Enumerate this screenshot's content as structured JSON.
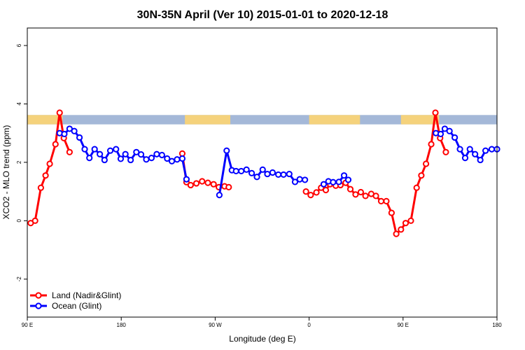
{
  "chart_data": {
    "type": "line",
    "title": "30N-35N April (Ver 10)   2015-01-01 to 2020-12-18",
    "xlabel": "Longitude (deg E)",
    "ylabel": "XCO2 - MLO trend (ppm)",
    "xlim": [
      90,
      270
    ],
    "ylim": [
      -3.3,
      6.6
    ],
    "xticks": [
      {
        "value": 90,
        "label": "90 E"
      },
      {
        "value": 126,
        "label": "180"
      },
      {
        "value": 162,
        "label": "90 W"
      },
      {
        "value": 198,
        "label": "0"
      },
      {
        "value": 234,
        "label": "90 E"
      },
      {
        "value": 270,
        "label": "180"
      }
    ],
    "yticks": [
      -2,
      0,
      2,
      4,
      6
    ],
    "legend_position": "bottom-left",
    "series": [
      {
        "name": "Land (Nadir&Glint)",
        "color": "#ff0000",
        "segments": [
          [
            [
              91.3,
              -0.08
            ],
            [
              93.0,
              0.0
            ],
            [
              95.2,
              1.13
            ],
            [
              97.0,
              1.55
            ],
            [
              98.6,
              1.95
            ],
            [
              100.8,
              2.62
            ],
            [
              102.4,
              3.7
            ],
            [
              104.0,
              2.83
            ],
            [
              106.2,
              2.35
            ]
          ],
          [
            [
              149.4,
              2.3
            ],
            [
              151.0,
              1.32
            ],
            [
              152.6,
              1.22
            ],
            [
              154.8,
              1.28
            ],
            [
              157.0,
              1.35
            ],
            [
              159.2,
              1.3
            ],
            [
              161.4,
              1.25
            ],
            [
              163.4,
              1.15
            ],
            [
              165.6,
              1.18
            ],
            [
              167.2,
              1.15
            ]
          ],
          [
            [
              196.8,
              1.0
            ],
            [
              198.6,
              0.88
            ],
            [
              200.8,
              0.97
            ],
            [
              202.6,
              1.13
            ],
            [
              204.4,
              1.05
            ],
            [
              206.0,
              1.25
            ],
            [
              208.2,
              1.2
            ],
            [
              210.0,
              1.22
            ],
            [
              212.0,
              1.3
            ],
            [
              213.8,
              1.08
            ],
            [
              215.8,
              0.9
            ],
            [
              217.8,
              0.98
            ],
            [
              219.6,
              0.85
            ],
            [
              221.8,
              0.92
            ],
            [
              223.6,
              0.85
            ],
            [
              225.6,
              0.67
            ],
            [
              227.6,
              0.67
            ],
            [
              229.6,
              0.27
            ],
            [
              231.4,
              -0.45
            ],
            [
              233.2,
              -0.3
            ],
            [
              235.0,
              -0.08
            ],
            [
              237.0,
              0.0
            ],
            [
              239.2,
              1.13
            ],
            [
              241.0,
              1.55
            ],
            [
              242.8,
              1.95
            ],
            [
              244.8,
              2.62
            ],
            [
              246.4,
              3.7
            ],
            [
              248.2,
              2.83
            ],
            [
              250.4,
              2.35
            ]
          ]
        ]
      },
      {
        "name": "Ocean (Glint)",
        "color": "#0000ff",
        "segments": [
          [
            [
              102.4,
              3.0
            ],
            [
              104.2,
              2.97
            ],
            [
              106.2,
              3.15
            ],
            [
              108.0,
              3.07
            ],
            [
              110.0,
              2.85
            ],
            [
              112.0,
              2.45
            ],
            [
              113.8,
              2.15
            ],
            [
              115.8,
              2.45
            ],
            [
              117.8,
              2.28
            ],
            [
              119.6,
              2.08
            ],
            [
              121.8,
              2.4
            ],
            [
              124.0,
              2.45
            ],
            [
              125.8,
              2.12
            ],
            [
              127.6,
              2.28
            ],
            [
              129.6,
              2.08
            ],
            [
              131.8,
              2.35
            ],
            [
              133.6,
              2.27
            ],
            [
              135.6,
              2.1
            ],
            [
              137.6,
              2.15
            ],
            [
              139.6,
              2.28
            ],
            [
              141.6,
              2.25
            ],
            [
              143.6,
              2.13
            ],
            [
              145.4,
              2.04
            ],
            [
              147.4,
              2.1
            ],
            [
              149.4,
              2.13
            ],
            [
              151.0,
              1.42
            ]
          ],
          [
            [
              163.6,
              0.88
            ],
            [
              166.4,
              2.4
            ],
            [
              168.4,
              1.73
            ],
            [
              170.0,
              1.7
            ],
            [
              172.0,
              1.7
            ],
            [
              174.0,
              1.75
            ],
            [
              176.0,
              1.63
            ],
            [
              178.0,
              1.5
            ],
            [
              180.2,
              1.75
            ],
            [
              182.0,
              1.6
            ],
            [
              184.0,
              1.65
            ],
            [
              186.2,
              1.58
            ],
            [
              188.2,
              1.58
            ],
            [
              190.4,
              1.6
            ],
            [
              192.6,
              1.33
            ],
            [
              194.4,
              1.42
            ],
            [
              196.4,
              1.4
            ]
          ],
          [
            [
              203.6,
              1.25
            ],
            [
              205.4,
              1.35
            ],
            [
              207.2,
              1.32
            ],
            [
              209.4,
              1.33
            ],
            [
              211.4,
              1.55
            ],
            [
              213.0,
              1.4
            ]
          ],
          [
            [
              246.6,
              3.0
            ],
            [
              248.4,
              2.97
            ],
            [
              250.0,
              3.15
            ],
            [
              251.8,
              3.07
            ],
            [
              253.8,
              2.85
            ],
            [
              255.8,
              2.45
            ],
            [
              257.8,
              2.15
            ],
            [
              259.6,
              2.45
            ],
            [
              261.6,
              2.28
            ],
            [
              263.6,
              2.08
            ],
            [
              265.6,
              2.4
            ],
            [
              268.0,
              2.45
            ],
            [
              270.0,
              2.45
            ]
          ]
        ]
      }
    ],
    "surface_band": {
      "y_range": [
        3.3,
        3.62
      ],
      "ocean_color": "#a4b8d8",
      "land_color": "#f5d27c",
      "land_ranges": [
        [
          90,
          103.5
        ],
        [
          150.4,
          167.8
        ],
        [
          198.0,
          217.5
        ],
        [
          233.2,
          247.8
        ]
      ]
    }
  }
}
